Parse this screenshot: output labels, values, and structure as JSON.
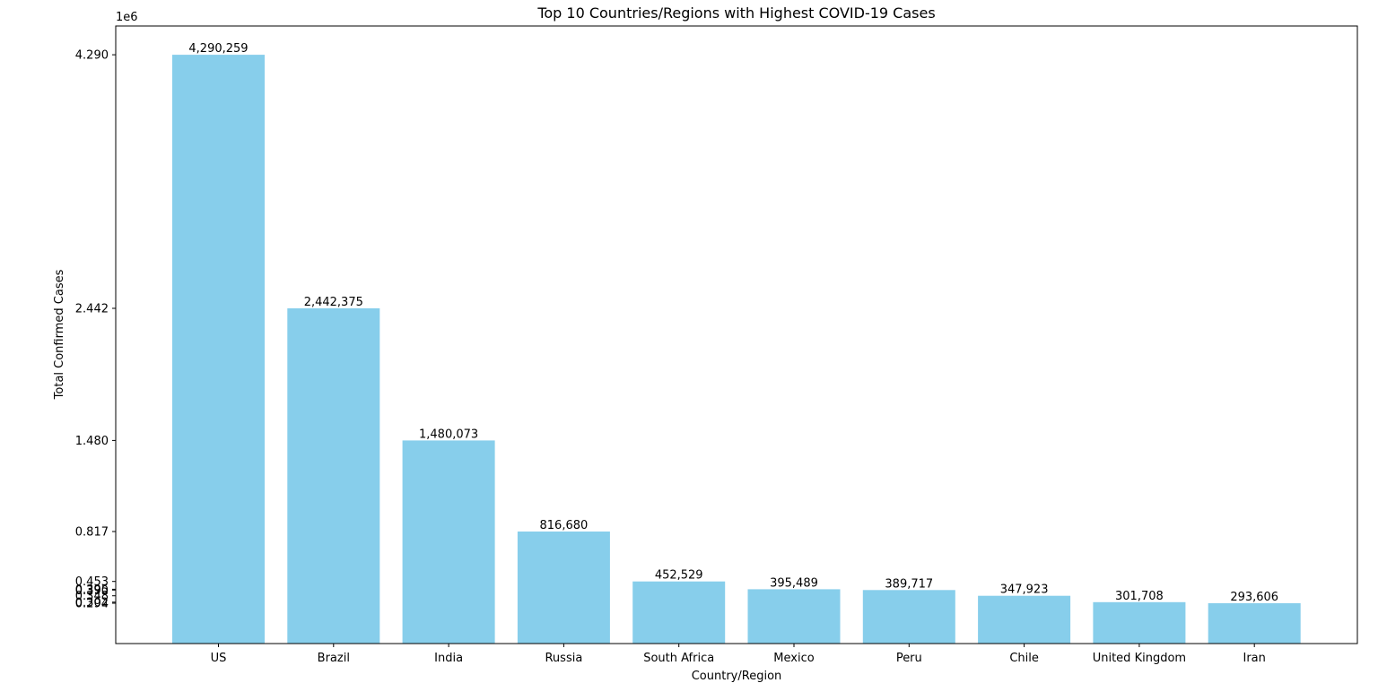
{
  "chart_data": {
    "type": "bar",
    "title": "Top 10 Countries/Regions with Highest COVID-19 Cases",
    "xlabel": "Country/Region",
    "ylabel": "Total Confirmed Cases",
    "y_multiplier_label": "1e6",
    "categories": [
      "US",
      "Brazil",
      "India",
      "Russia",
      "South Africa",
      "Mexico",
      "Peru",
      "Chile",
      "United Kingdom",
      "Iran"
    ],
    "values": [
      4290259,
      2442375,
      1480073,
      816680,
      452529,
      395489,
      389717,
      347923,
      301708,
      293606
    ],
    "value_labels": [
      "4,290,259",
      "2,442,375",
      "1,480,073",
      "816,680",
      "452,529",
      "395,489",
      "389,717",
      "347,923",
      "301,708",
      "293,606"
    ],
    "y_ticks": [
      4290259,
      2442375,
      1480073,
      816680,
      452529,
      395489,
      389717,
      347923,
      301708,
      293606
    ],
    "y_tick_labels": [
      "4.290",
      "2.442",
      "1.480",
      "0.817",
      "0.453",
      "0.395",
      "0.390",
      "0.348",
      "0.302",
      "0.294"
    ],
    "ylim": [
      0,
      4500000
    ],
    "bar_color": "#87CEEB",
    "grid": false,
    "legend": "none"
  }
}
